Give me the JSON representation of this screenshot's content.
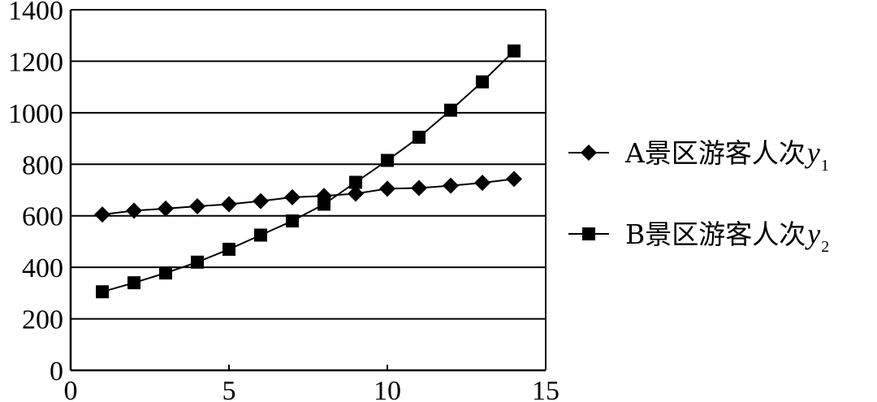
{
  "chart_data": {
    "type": "line",
    "title": "",
    "xlabel": "",
    "ylabel": "",
    "xlim": [
      0,
      15
    ],
    "ylim": [
      0,
      1400
    ],
    "x_ticks": [
      "0",
      "5",
      "10",
      "15"
    ],
    "y_ticks": [
      "0",
      "200",
      "400",
      "600",
      "800",
      "1000",
      "1200",
      "1400"
    ],
    "grid": "horizontal",
    "legend_position": "right",
    "x": [
      1,
      2,
      3,
      4,
      5,
      6,
      7,
      8,
      9,
      10,
      11,
      12,
      13,
      14
    ],
    "series": [
      {
        "name": "A景区游客人次",
        "var": "y",
        "sub": "1",
        "marker": "diamond",
        "values": [
          605,
          620,
          628,
          637,
          645,
          657,
          672,
          677,
          686,
          705,
          708,
          717,
          728,
          743
        ]
      },
      {
        "name": "B景区游客人次",
        "var": "y",
        "sub": "2",
        "marker": "square",
        "values": [
          305,
          340,
          378,
          420,
          470,
          525,
          580,
          645,
          730,
          815,
          905,
          1010,
          1120,
          1240
        ]
      }
    ]
  }
}
